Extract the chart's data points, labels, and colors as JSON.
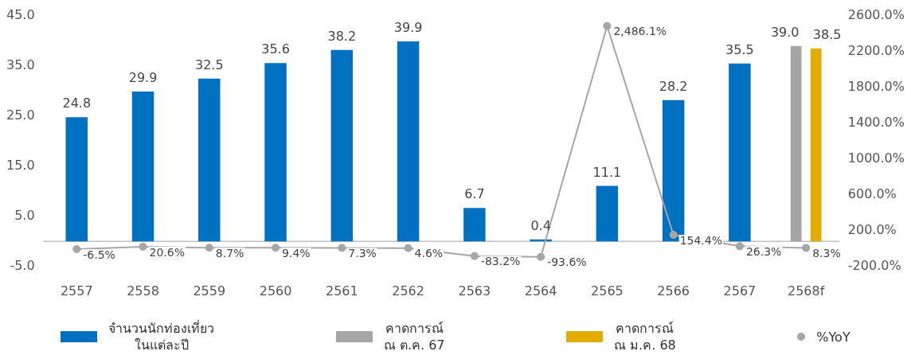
{
  "chart_data": {
    "type": "bar",
    "categories": [
      "2557",
      "2558",
      "2559",
      "2560",
      "2561",
      "2562",
      "2563",
      "2564",
      "2565",
      "2566",
      "2567",
      "2568f"
    ],
    "series": [
      {
        "name": "จำนวนนักท่องเที่ยว\nในแต่ละปี",
        "color": "#0070c0",
        "values": [
          24.8,
          29.9,
          32.5,
          35.6,
          38.2,
          39.9,
          6.7,
          0.4,
          11.1,
          28.2,
          35.5,
          null
        ],
        "value_labels": [
          "24.8",
          "29.9",
          "32.5",
          "35.6",
          "38.2",
          "39.9",
          "6.7",
          "0.4",
          "11.1",
          "28.2",
          "35.5",
          null
        ]
      },
      {
        "name": "คาดการณ์\nณ ต.ค. 67",
        "color": "#a5a5a5",
        "values": [
          null,
          null,
          null,
          null,
          null,
          null,
          null,
          null,
          null,
          null,
          null,
          39.0
        ],
        "value_labels": [
          null,
          null,
          null,
          null,
          null,
          null,
          null,
          null,
          null,
          null,
          null,
          "39.0"
        ]
      },
      {
        "name": "คาดการณ์\nณ ม.ค. 68",
        "color": "#e2ac00",
        "values": [
          null,
          null,
          null,
          null,
          null,
          null,
          null,
          null,
          null,
          null,
          null,
          38.5
        ],
        "value_labels": [
          null,
          null,
          null,
          null,
          null,
          null,
          null,
          null,
          null,
          null,
          null,
          "38.5"
        ]
      },
      {
        "name": "%YoY",
        "type": "line",
        "axis": "y2",
        "color": "#a6a6a6",
        "marker": "circle",
        "values": [
          -6.5,
          20.6,
          8.7,
          9.4,
          7.3,
          4.6,
          -83.2,
          -93.6,
          2486.1,
          154.4,
          26.3,
          8.3
        ],
        "value_labels": [
          "-6.5%",
          "20.6%",
          "8.7%",
          "9.4%",
          "7.3%",
          "4.6%",
          "-83.2%",
          "-93.6%",
          "2,486.1%",
          "154.4%",
          "26.3%",
          "8.3%"
        ]
      }
    ],
    "ylim": [
      -5,
      45
    ],
    "yticks": [
      {
        "value": -5,
        "label": "-5.0"
      },
      {
        "value": 5,
        "label": "5.0"
      },
      {
        "value": 15,
        "label": "15.0"
      },
      {
        "value": 25,
        "label": "25.0"
      },
      {
        "value": 35,
        "label": "35.0"
      },
      {
        "value": 45,
        "label": "45.0"
      }
    ],
    "y2lim": [
      -200,
      2600
    ],
    "y2ticks": [
      {
        "value": -200,
        "label": "-200.0%"
      },
      {
        "value": 200,
        "label": "200.0%"
      },
      {
        "value": 600,
        "label": "600.0%"
      },
      {
        "value": 1000,
        "label": "1000.0%"
      },
      {
        "value": 1400,
        "label": "1400.0%"
      },
      {
        "value": 1800,
        "label": "1800.0%"
      },
      {
        "value": 2200,
        "label": "2200.0%"
      },
      {
        "value": 2600,
        "label": "2600.0%"
      }
    ],
    "ref_lines": [
      {
        "axis": "y",
        "value": 0,
        "color": "#bfbfbf"
      }
    ],
    "grid": false,
    "legend": "bottom"
  }
}
